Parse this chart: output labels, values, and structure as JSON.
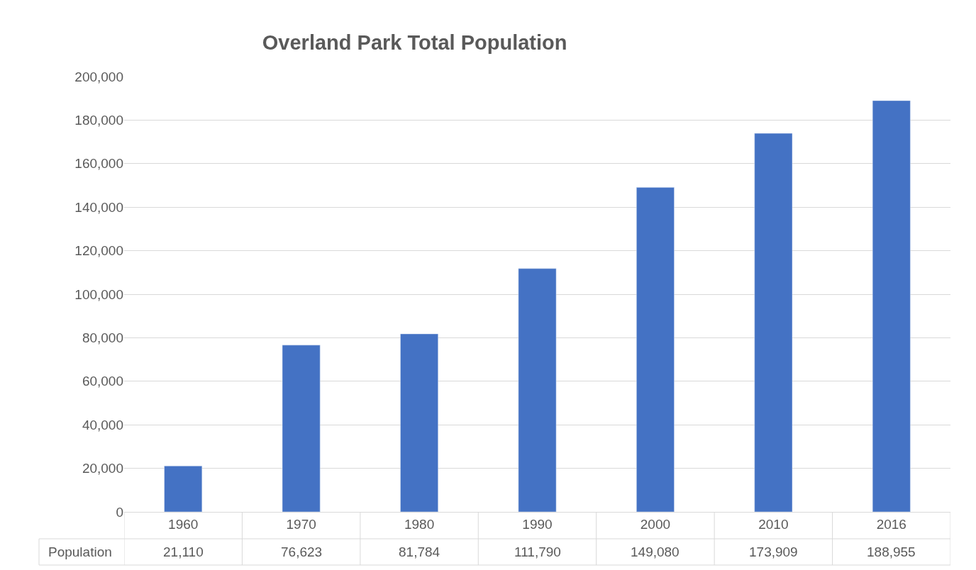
{
  "chart_data": {
    "type": "bar",
    "title": "Overland Park Total Population",
    "categories": [
      "1960",
      "1970",
      "1980",
      "1990",
      "2000",
      "2010",
      "2016"
    ],
    "series": [
      {
        "name": "Population",
        "color": "#4472c4",
        "values": [
          21110,
          76623,
          81784,
          111790,
          149080,
          173909,
          188955
        ],
        "value_labels": [
          "21,110",
          "76,623",
          "81,784",
          "111,790",
          "149,080",
          "173,909",
          "188,955"
        ]
      }
    ],
    "ylim": [
      0,
      200000
    ],
    "yticks": [
      {
        "value": 0,
        "label": "0"
      },
      {
        "value": 20000,
        "label": "20,000"
      },
      {
        "value": 40000,
        "label": "40,000"
      },
      {
        "value": 60000,
        "label": "60,000"
      },
      {
        "value": 80000,
        "label": "80,000"
      },
      {
        "value": 100000,
        "label": "100,000"
      },
      {
        "value": 120000,
        "label": "120,000"
      },
      {
        "value": 140000,
        "label": "140,000"
      },
      {
        "value": 160000,
        "label": "160,000"
      },
      {
        "value": 180000,
        "label": "180,000"
      },
      {
        "value": 200000,
        "label": "200,000"
      }
    ],
    "grid": "y",
    "legend": false
  }
}
